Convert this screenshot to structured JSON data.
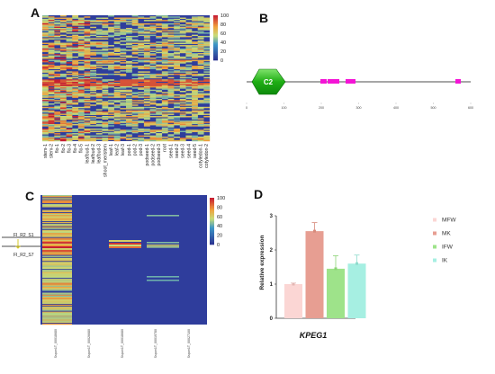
{
  "panels": {
    "a": {
      "letter": "A",
      "colorbar": {
        "ticks": [
          "100",
          "80",
          "60",
          "40",
          "20",
          "0"
        ]
      },
      "samples": [
        "stem-1",
        "stem-2",
        "flo-1",
        "flo-2",
        "flo-3",
        "flo-4",
        "flo-5",
        "leafbud-1",
        "leafbud-2",
        "leafbud-3",
        "shoot_meristem",
        "leaf-1",
        "leaf-2",
        "leaf-3",
        "pod-1",
        "pod-2",
        "pod-3",
        "podseed-1",
        "podseed-2",
        "podseed-3",
        "root",
        "seed-1",
        "seed-2",
        "seed-3",
        "seed-4",
        "seed-5",
        "cotyledon-1",
        "cotyledon-2"
      ]
    },
    "b": {
      "letter": "B",
      "domain_label": "C2",
      "axis_ticks": [
        "0",
        "100",
        "200",
        "300",
        "400",
        "500",
        "600"
      ]
    },
    "c": {
      "letter": "C",
      "colorbar": {
        "ticks": [
          "100",
          "80",
          "60",
          "40",
          "20",
          "0"
        ]
      },
      "row_labels": [
        "FI_R2_S1",
        "FI_R2_S7"
      ],
      "columns": [
        "Sspon1T_00018680",
        "Sspon1T_00026680",
        "Sspon1T_00018680",
        "Sspon1T_00019780",
        "Sspon1T_00027100"
      ]
    },
    "d": {
      "letter": "D"
    }
  },
  "chart_data": {
    "type": "bar",
    "categories": [
      "MFW",
      "MK",
      "IFW",
      "IK"
    ],
    "values": [
      1.0,
      2.55,
      1.45,
      1.6
    ],
    "errors": [
      0.03,
      0.25,
      0.38,
      0.25
    ],
    "xlabel": "KPEG1",
    "ylabel": "Relative expression",
    "ylim": [
      0,
      3
    ],
    "yticks": [
      "0",
      "1",
      "2",
      "3"
    ],
    "colors": [
      "#fbd6d4",
      "#e79e92",
      "#9ee38a",
      "#a6efe2"
    ],
    "errColors": [
      "#e3b7b3",
      "#d78b7c",
      "#8cd477",
      "#8fdccd"
    ],
    "legend": [
      "MFW",
      "MK",
      "IFW",
      "IK"
    ],
    "legend_position": "right"
  },
  "colors": {
    "heat_bg": "#2f3d9c",
    "heat_low": "#2c3592",
    "heat_high": "#c7233a"
  }
}
